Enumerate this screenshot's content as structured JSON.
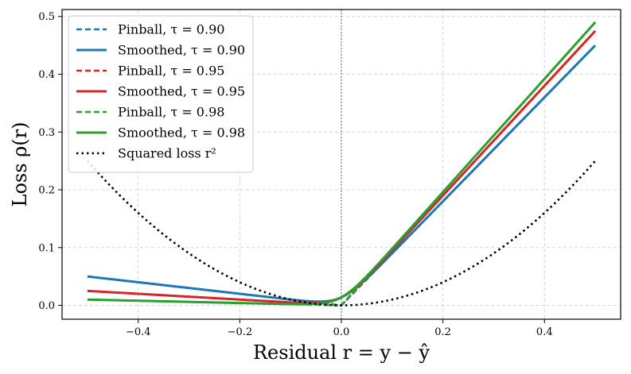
{
  "chart_data": {
    "type": "line",
    "xlabel": "Residual r = y − ŷ",
    "ylabel": "Loss ρ(r)",
    "xlim": [
      -0.55,
      0.55
    ],
    "ylim": [
      -0.024,
      0.512
    ],
    "xticks": [
      -0.4,
      -0.2,
      0.0,
      0.2,
      0.4
    ],
    "xtick_labels": [
      "−0.4",
      "−0.2",
      "0.0",
      "0.2",
      "0.4"
    ],
    "yticks": [
      0.0,
      0.1,
      0.2,
      0.3,
      0.4,
      0.5
    ],
    "ytick_labels": [
      "0.0",
      "0.1",
      "0.2",
      "0.3",
      "0.4",
      "0.5"
    ],
    "grid": true,
    "vline_x": 0.0,
    "legend_position": "top-left",
    "series": [
      {
        "name": "Pinball, τ = 0.90",
        "kind": "pinball",
        "tau": 0.9,
        "color": "#1f77b4",
        "style": "dashed"
      },
      {
        "name": "Smoothed, τ = 0.90",
        "kind": "smoothed",
        "tau": 0.9,
        "color": "#1f77b4",
        "style": "solid"
      },
      {
        "name": "Pinball, τ = 0.95",
        "kind": "pinball",
        "tau": 0.95,
        "color": "#d62728",
        "style": "dashed"
      },
      {
        "name": "Smoothed, τ = 0.95",
        "kind": "smoothed",
        "tau": 0.95,
        "color": "#d62728",
        "style": "solid"
      },
      {
        "name": "Pinball, τ = 0.98",
        "kind": "pinball",
        "tau": 0.98,
        "color": "#2ca02c",
        "style": "dashed"
      },
      {
        "name": "Smoothed, τ = 0.98",
        "kind": "smoothed",
        "tau": 0.98,
        "color": "#2ca02c",
        "style": "solid"
      },
      {
        "name": "Squared loss r²",
        "kind": "squared",
        "color": "#000000",
        "style": "dotted"
      }
    ],
    "x_range": [
      -0.5,
      0.5
    ],
    "smoothing_alpha": 0.02
  }
}
